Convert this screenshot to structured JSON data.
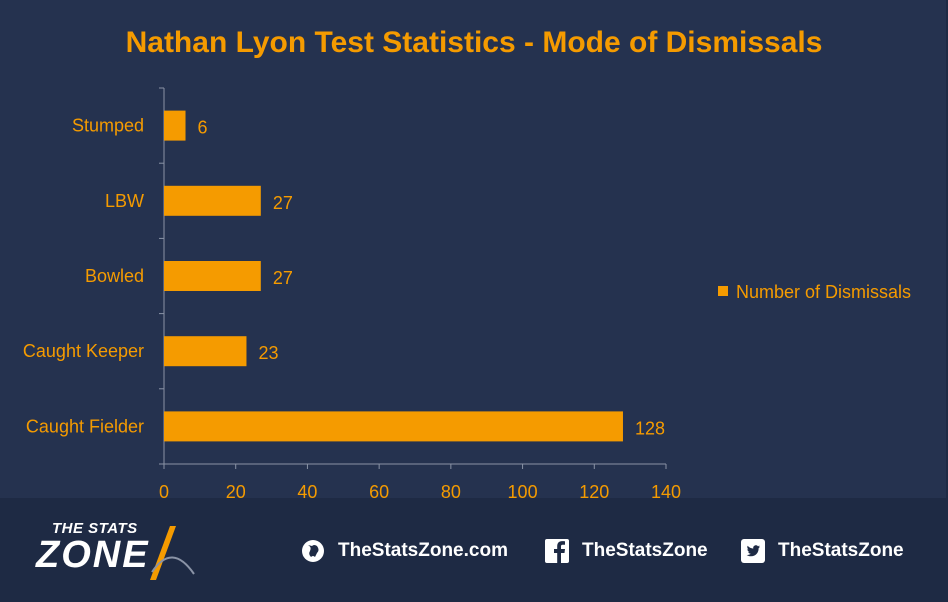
{
  "chart_data": {
    "type": "bar",
    "orientation": "horizontal",
    "title": "Nathan Lyon Test Statistics - Mode of Dismissals",
    "categories": [
      "Stumped",
      "LBW",
      "Bowled",
      "Caught Keeper",
      "Caught Fielder"
    ],
    "series": [
      {
        "name": "Number of Dismissals",
        "values": [
          6,
          27,
          27,
          23,
          128
        ]
      }
    ],
    "xlim": [
      0,
      140
    ],
    "xticks": [
      0,
      20,
      40,
      60,
      80,
      100,
      120,
      140
    ],
    "xlabel": "",
    "ylabel": "",
    "grid": false,
    "legend_position": "right",
    "data_labels": true
  },
  "colors": {
    "accent": "#f59b00",
    "background": "#25324f",
    "footer": "#1e2a44",
    "axis": "#8a93a6",
    "text": "#ffffff"
  },
  "footer": {
    "logo_top": "THE STATS",
    "logo_bottom": "ZONE",
    "website": "TheStatsZone.com",
    "facebook": "TheStatsZone",
    "twitter": "TheStatsZone",
    "icons": [
      "globe-icon",
      "facebook-icon",
      "twitter-icon"
    ]
  }
}
